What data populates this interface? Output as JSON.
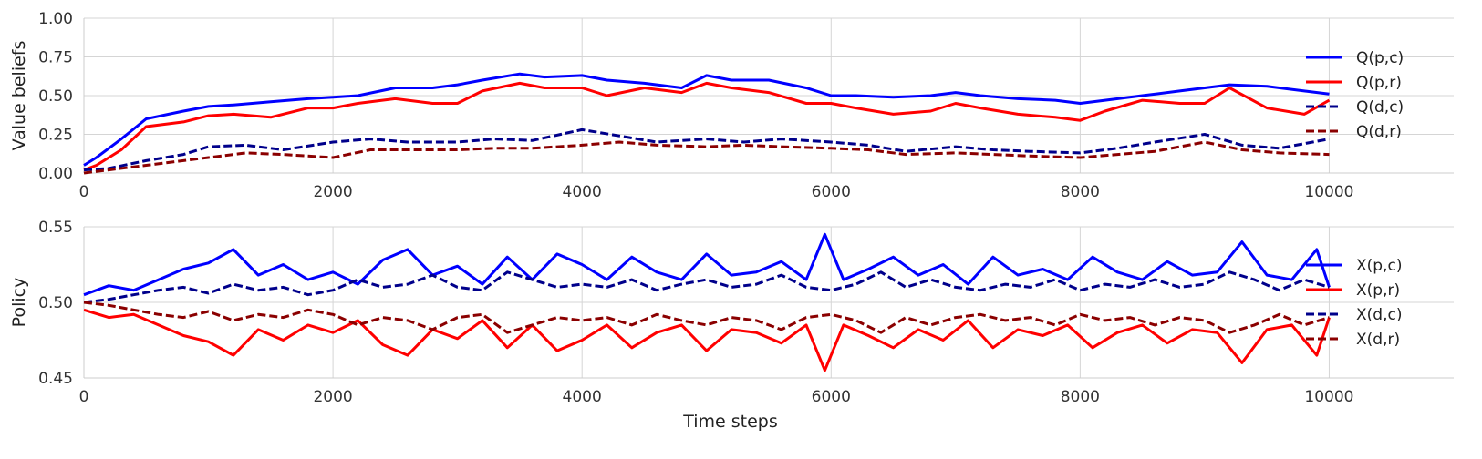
{
  "chart_data": [
    {
      "type": "line",
      "title": "",
      "xlabel": "",
      "ylabel": "Value beliefs",
      "xlim": [
        0,
        11000
      ],
      "ylim": [
        0,
        1
      ],
      "xticks": [
        0,
        2000,
        4000,
        6000,
        8000,
        10000
      ],
      "xtick_labels": [
        "0",
        "2000",
        "4000",
        "6000",
        "8000",
        "10000"
      ],
      "yticks": [
        0,
        0.25,
        0.5,
        0.75,
        1.0
      ],
      "ytick_labels": [
        "0.00",
        "0.25",
        "0.50",
        "0.75",
        "1.00"
      ],
      "grid": true,
      "legend": "right",
      "series": [
        {
          "name": "Q(p,c)",
          "color": "#0000ff",
          "dash": "solid",
          "x": [
            0,
            100,
            300,
            500,
            800,
            1000,
            1200,
            1500,
            1800,
            2000,
            2200,
            2500,
            2800,
            3000,
            3200,
            3500,
            3700,
            4000,
            4200,
            4500,
            4800,
            5000,
            5200,
            5500,
            5800,
            6000,
            6200,
            6500,
            6800,
            7000,
            7200,
            7500,
            7800,
            8000,
            8200,
            8500,
            8800,
            9000,
            9200,
            9500,
            9800,
            10000
          ],
          "y": [
            0.05,
            0.1,
            0.22,
            0.35,
            0.4,
            0.43,
            0.44,
            0.46,
            0.48,
            0.49,
            0.5,
            0.55,
            0.55,
            0.57,
            0.6,
            0.64,
            0.62,
            0.63,
            0.6,
            0.58,
            0.55,
            0.63,
            0.6,
            0.6,
            0.55,
            0.5,
            0.5,
            0.49,
            0.5,
            0.52,
            0.5,
            0.48,
            0.47,
            0.45,
            0.47,
            0.5,
            0.53,
            0.55,
            0.57,
            0.56,
            0.53,
            0.51
          ]
        },
        {
          "name": "Q(p,r)",
          "color": "#ff0000",
          "dash": "solid",
          "x": [
            0,
            100,
            300,
            500,
            800,
            1000,
            1200,
            1500,
            1800,
            2000,
            2200,
            2500,
            2800,
            3000,
            3200,
            3500,
            3700,
            4000,
            4200,
            4500,
            4800,
            5000,
            5200,
            5500,
            5800,
            6000,
            6200,
            6500,
            6800,
            7000,
            7200,
            7500,
            7800,
            8000,
            8200,
            8500,
            8800,
            9000,
            9200,
            9500,
            9800,
            10000
          ],
          "y": [
            0.02,
            0.05,
            0.15,
            0.3,
            0.33,
            0.37,
            0.38,
            0.36,
            0.42,
            0.42,
            0.45,
            0.48,
            0.45,
            0.45,
            0.53,
            0.58,
            0.55,
            0.55,
            0.5,
            0.55,
            0.52,
            0.58,
            0.55,
            0.52,
            0.45,
            0.45,
            0.42,
            0.38,
            0.4,
            0.45,
            0.42,
            0.38,
            0.36,
            0.34,
            0.4,
            0.47,
            0.45,
            0.45,
            0.55,
            0.42,
            0.38,
            0.47
          ]
        },
        {
          "name": "Q(d,c)",
          "color": "#00008b",
          "dash": "dashed",
          "x": [
            0,
            200,
            500,
            800,
            1000,
            1300,
            1600,
            2000,
            2300,
            2600,
            3000,
            3300,
            3600,
            4000,
            4300,
            4600,
            5000,
            5300,
            5600,
            6000,
            6300,
            6600,
            7000,
            7300,
            7600,
            8000,
            8300,
            8600,
            9000,
            9300,
            9600,
            10000
          ],
          "y": [
            0.02,
            0.03,
            0.08,
            0.12,
            0.17,
            0.18,
            0.15,
            0.2,
            0.22,
            0.2,
            0.2,
            0.22,
            0.21,
            0.28,
            0.24,
            0.2,
            0.22,
            0.2,
            0.22,
            0.2,
            0.18,
            0.14,
            0.17,
            0.15,
            0.14,
            0.13,
            0.16,
            0.2,
            0.25,
            0.18,
            0.16,
            0.22
          ]
        },
        {
          "name": "Q(d,r)",
          "color": "#8b0000",
          "dash": "dashed",
          "x": [
            0,
            200,
            500,
            800,
            1000,
            1300,
            1600,
            2000,
            2300,
            2600,
            3000,
            3300,
            3600,
            4000,
            4300,
            4600,
            5000,
            5300,
            5600,
            6000,
            6300,
            6600,
            7000,
            7300,
            7600,
            8000,
            8300,
            8600,
            9000,
            9300,
            9600,
            10000
          ],
          "y": [
            0.0,
            0.02,
            0.05,
            0.08,
            0.1,
            0.13,
            0.12,
            0.1,
            0.15,
            0.15,
            0.15,
            0.16,
            0.16,
            0.18,
            0.2,
            0.18,
            0.17,
            0.18,
            0.17,
            0.16,
            0.15,
            0.12,
            0.13,
            0.12,
            0.11,
            0.1,
            0.12,
            0.14,
            0.2,
            0.15,
            0.13,
            0.12
          ]
        }
      ]
    },
    {
      "type": "line",
      "title": "",
      "xlabel": "Time steps",
      "ylabel": "Policy",
      "xlim": [
        0,
        11000
      ],
      "ylim": [
        0.45,
        0.55
      ],
      "xticks": [
        0,
        2000,
        4000,
        6000,
        8000,
        10000
      ],
      "xtick_labels": [
        "0",
        "2000",
        "4000",
        "6000",
        "8000",
        "10000"
      ],
      "yticks": [
        0.45,
        0.5,
        0.55
      ],
      "ytick_labels": [
        "0.45",
        "0.50",
        "0.55"
      ],
      "grid": true,
      "legend": "right",
      "series": [
        {
          "name": "X(p,c)",
          "color": "#0000ff",
          "dash": "solid",
          "x": [
            0,
            200,
            400,
            600,
            800,
            1000,
            1200,
            1400,
            1600,
            1800,
            2000,
            2200,
            2400,
            2600,
            2800,
            3000,
            3200,
            3400,
            3600,
            3800,
            4000,
            4200,
            4400,
            4600,
            4800,
            5000,
            5200,
            5400,
            5600,
            5800,
            5950,
            6100,
            6300,
            6500,
            6700,
            6900,
            7100,
            7300,
            7500,
            7700,
            7900,
            8100,
            8300,
            8500,
            8700,
            8900,
            9100,
            9300,
            9500,
            9700,
            9900,
            10000
          ],
          "y": [
            0.505,
            0.511,
            0.508,
            0.515,
            0.522,
            0.526,
            0.535,
            0.518,
            0.525,
            0.515,
            0.52,
            0.512,
            0.528,
            0.535,
            0.518,
            0.524,
            0.512,
            0.53,
            0.515,
            0.532,
            0.525,
            0.515,
            0.53,
            0.52,
            0.515,
            0.532,
            0.518,
            0.52,
            0.527,
            0.515,
            0.545,
            0.515,
            0.522,
            0.53,
            0.518,
            0.525,
            0.512,
            0.53,
            0.518,
            0.522,
            0.515,
            0.53,
            0.52,
            0.515,
            0.527,
            0.518,
            0.52,
            0.54,
            0.518,
            0.515,
            0.535,
            0.51
          ]
        },
        {
          "name": "X(p,r)",
          "color": "#ff0000",
          "dash": "solid",
          "x": [
            0,
            200,
            400,
            600,
            800,
            1000,
            1200,
            1400,
            1600,
            1800,
            2000,
            2200,
            2400,
            2600,
            2800,
            3000,
            3200,
            3400,
            3600,
            3800,
            4000,
            4200,
            4400,
            4600,
            4800,
            5000,
            5200,
            5400,
            5600,
            5800,
            5950,
            6100,
            6300,
            6500,
            6700,
            6900,
            7100,
            7300,
            7500,
            7700,
            7900,
            8100,
            8300,
            8500,
            8700,
            8900,
            9100,
            9300,
            9500,
            9700,
            9900,
            10000
          ],
          "y": [
            0.495,
            0.49,
            0.492,
            0.485,
            0.478,
            0.474,
            0.465,
            0.482,
            0.475,
            0.485,
            0.48,
            0.488,
            0.472,
            0.465,
            0.482,
            0.476,
            0.488,
            0.47,
            0.485,
            0.468,
            0.475,
            0.485,
            0.47,
            0.48,
            0.485,
            0.468,
            0.482,
            0.48,
            0.473,
            0.485,
            0.455,
            0.485,
            0.478,
            0.47,
            0.482,
            0.475,
            0.488,
            0.47,
            0.482,
            0.478,
            0.485,
            0.47,
            0.48,
            0.485,
            0.473,
            0.482,
            0.48,
            0.46,
            0.482,
            0.485,
            0.465,
            0.49
          ]
        },
        {
          "name": "X(d,c)",
          "color": "#00008b",
          "dash": "dashed",
          "x": [
            0,
            200,
            400,
            600,
            800,
            1000,
            1200,
            1400,
            1600,
            1800,
            2000,
            2200,
            2400,
            2600,
            2800,
            3000,
            3200,
            3400,
            3600,
            3800,
            4000,
            4200,
            4400,
            4600,
            4800,
            5000,
            5200,
            5400,
            5600,
            5800,
            6000,
            6200,
            6400,
            6600,
            6800,
            7000,
            7200,
            7400,
            7600,
            7800,
            8000,
            8200,
            8400,
            8600,
            8800,
            9000,
            9200,
            9400,
            9600,
            9800,
            10000
          ],
          "y": [
            0.5,
            0.502,
            0.505,
            0.508,
            0.51,
            0.506,
            0.512,
            0.508,
            0.51,
            0.505,
            0.508,
            0.515,
            0.51,
            0.512,
            0.518,
            0.51,
            0.508,
            0.52,
            0.515,
            0.51,
            0.512,
            0.51,
            0.515,
            0.508,
            0.512,
            0.515,
            0.51,
            0.512,
            0.518,
            0.51,
            0.508,
            0.512,
            0.52,
            0.51,
            0.515,
            0.51,
            0.508,
            0.512,
            0.51,
            0.515,
            0.508,
            0.512,
            0.51,
            0.515,
            0.51,
            0.512,
            0.52,
            0.515,
            0.508,
            0.515,
            0.51
          ]
        },
        {
          "name": "X(d,r)",
          "color": "#8b0000",
          "dash": "dashed",
          "x": [
            0,
            200,
            400,
            600,
            800,
            1000,
            1200,
            1400,
            1600,
            1800,
            2000,
            2200,
            2400,
            2600,
            2800,
            3000,
            3200,
            3400,
            3600,
            3800,
            4000,
            4200,
            4400,
            4600,
            4800,
            5000,
            5200,
            5400,
            5600,
            5800,
            6000,
            6200,
            6400,
            6600,
            6800,
            7000,
            7200,
            7400,
            7600,
            7800,
            8000,
            8200,
            8400,
            8600,
            8800,
            9000,
            9200,
            9400,
            9600,
            9800,
            10000
          ],
          "y": [
            0.5,
            0.498,
            0.495,
            0.492,
            0.49,
            0.494,
            0.488,
            0.492,
            0.49,
            0.495,
            0.492,
            0.485,
            0.49,
            0.488,
            0.482,
            0.49,
            0.492,
            0.48,
            0.485,
            0.49,
            0.488,
            0.49,
            0.485,
            0.492,
            0.488,
            0.485,
            0.49,
            0.488,
            0.482,
            0.49,
            0.492,
            0.488,
            0.48,
            0.49,
            0.485,
            0.49,
            0.492,
            0.488,
            0.49,
            0.485,
            0.492,
            0.488,
            0.49,
            0.485,
            0.49,
            0.488,
            0.48,
            0.485,
            0.492,
            0.485,
            0.49
          ]
        }
      ]
    }
  ]
}
